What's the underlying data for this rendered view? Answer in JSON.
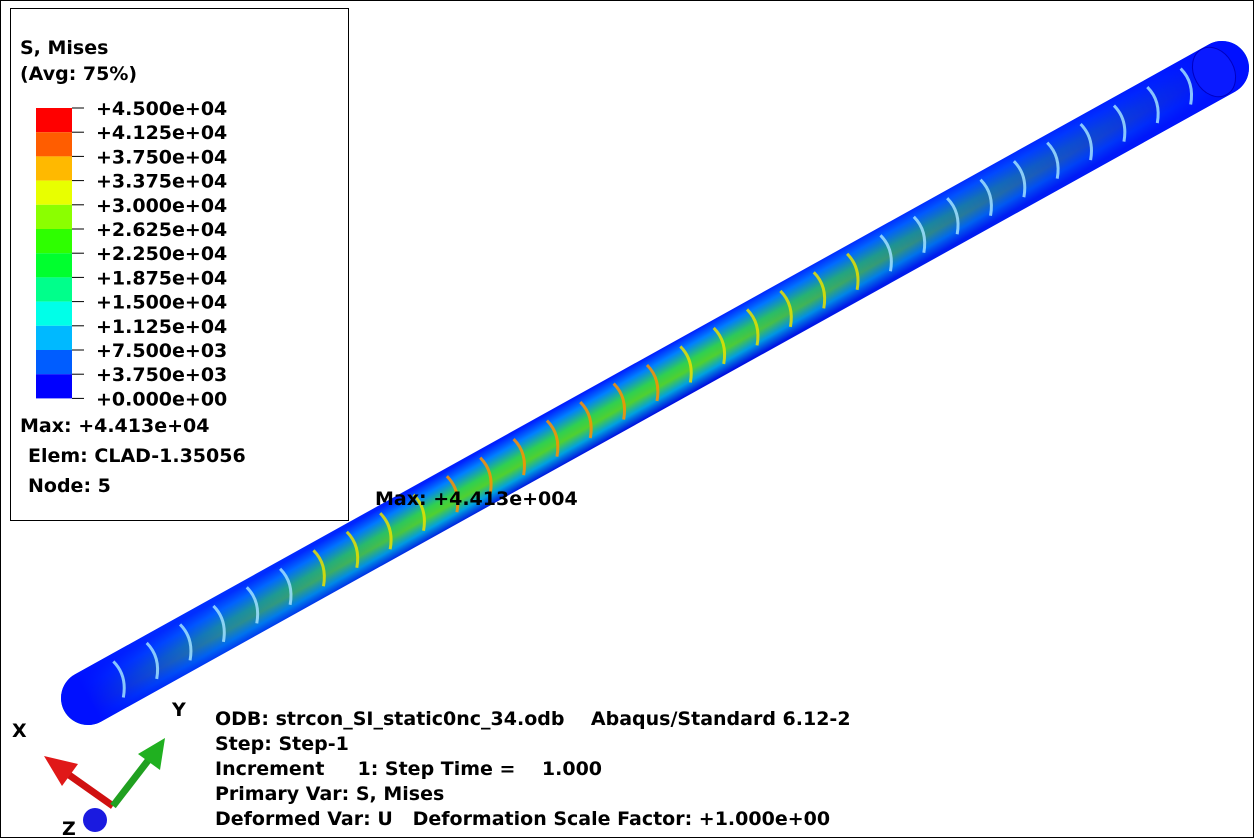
{
  "legend": {
    "title": "S, Mises",
    "averaging": "(Avg: 75%)",
    "colors": [
      "#ff0000",
      "#ff5d00",
      "#ffb900",
      "#e8ff00",
      "#8bff00",
      "#2eff00",
      "#00ff2e",
      "#00ff8b",
      "#00ffe8",
      "#00b9ff",
      "#005dff",
      "#0000ff"
    ],
    "labels": [
      "+4.500e+04",
      "+4.125e+04",
      "+3.750e+04",
      "+3.375e+04",
      "+3.000e+04",
      "+2.625e+04",
      "+2.250e+04",
      "+1.875e+04",
      "+1.500e+04",
      "+1.125e+04",
      "+7.500e+03",
      "+3.750e+03",
      "+0.000e+00"
    ],
    "max": "Max: +4.413e+04",
    "elem": "Elem: CLAD-1.35056",
    "node": "Node: 5"
  },
  "annotation": "Max: +4.413e+004",
  "info": [
    "ODB: strcon_SI_static0nc_34.odb    Abaqus/Standard 6.12-2",
    "Step: Step-1",
    "Increment     1: Step Time =    1.000",
    "Primary Var: S, Mises",
    "Deformed Var: U   Deformation Scale Factor: +1.000e+00"
  ],
  "triad": {
    "x": "X",
    "y": "Y",
    "z": "Z"
  }
}
